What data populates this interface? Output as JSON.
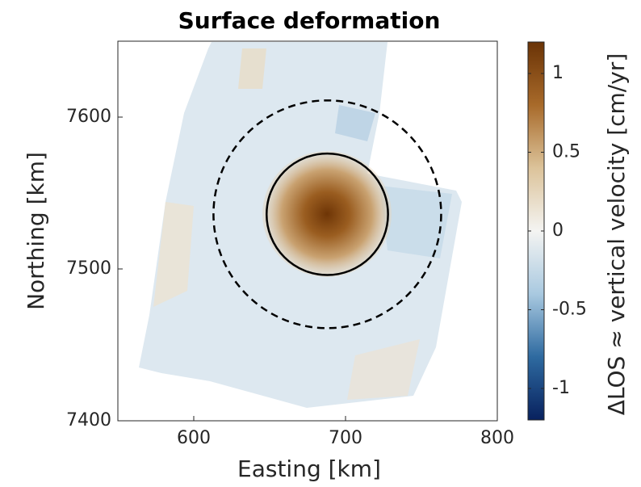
{
  "chart_data": {
    "type": "heatmap",
    "title": "Surface deformation",
    "x_label": "Easting [km]",
    "y_label": "Northing [km]",
    "xlim": [
      550,
      800
    ],
    "xticks": [
      600,
      700,
      800
    ],
    "ylim": [
      7400,
      7650
    ],
    "yticks": [
      7400,
      7500,
      7600
    ],
    "colorbar": {
      "label": "ΔLOS ≈ vertical velocity [cm/yr]",
      "clim": [
        -1.2,
        1.2
      ],
      "ticks": [
        1,
        0.5,
        0,
        -0.5,
        -1
      ],
      "colormap": [
        "#08215e",
        "#2e6aa0",
        "#a9c9e0",
        "#f4f4f2",
        "#dcc39a",
        "#a86a2a",
        "#6a3306"
      ]
    },
    "circles": [
      {
        "center": [
          688,
          7536
        ],
        "radius": 40,
        "style": "solid"
      },
      {
        "center": [
          688,
          7536
        ],
        "radius": 75,
        "style": "dashed"
      }
    ]
  }
}
